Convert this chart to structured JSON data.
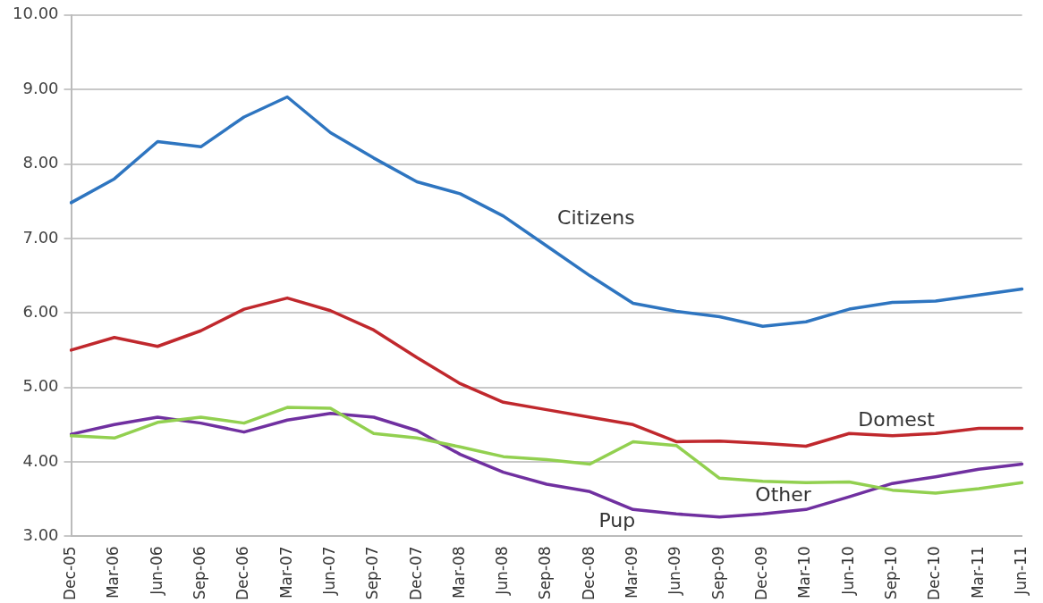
{
  "chart_data": {
    "type": "line",
    "categories": [
      "Dec-05",
      "Mar-06",
      "Jun-06",
      "Sep-06",
      "Dec-06",
      "Mar-07",
      "Jun-07",
      "Sep-07",
      "Dec-07",
      "Mar-08",
      "Jun-08",
      "Sep-08",
      "Dec-08",
      "Mar-09",
      "Jun-09",
      "Sep-09",
      "Dec-09",
      "Mar-10",
      "Jun-10",
      "Sep-10",
      "Dec-10",
      "Mar-11",
      "Jun-11"
    ],
    "series": [
      {
        "name": "Citizens",
        "color": "#2e75c0",
        "values": [
          7.48,
          7.8,
          8.3,
          8.23,
          8.63,
          8.9,
          8.42,
          8.08,
          7.76,
          7.6,
          7.3,
          6.9,
          6.5,
          6.13,
          6.02,
          5.95,
          5.82,
          5.88,
          6.05,
          6.14,
          6.16,
          6.24,
          6.32
        ]
      },
      {
        "name": "Domest",
        "color": "#c0282d",
        "values": [
          5.5,
          5.67,
          5.55,
          5.76,
          6.05,
          6.2,
          6.03,
          5.77,
          5.4,
          5.05,
          4.8,
          4.7,
          4.6,
          4.5,
          4.27,
          4.28,
          4.25,
          4.21,
          4.38,
          4.35,
          4.38,
          4.45,
          4.45
        ]
      },
      {
        "name": "Other",
        "color": "#92d050",
        "values": [
          4.35,
          4.32,
          4.53,
          4.6,
          4.52,
          4.73,
          4.72,
          4.38,
          4.32,
          4.2,
          4.07,
          4.03,
          3.97,
          4.27,
          4.22,
          3.78,
          3.74,
          3.72,
          3.73,
          3.62,
          3.58,
          3.64,
          3.72
        ]
      },
      {
        "name": "Pup",
        "color": "#7030a0",
        "values": [
          4.37,
          4.5,
          4.6,
          4.52,
          4.4,
          4.56,
          4.65,
          4.6,
          4.42,
          4.1,
          3.86,
          3.7,
          3.6,
          3.36,
          3.3,
          3.26,
          3.3,
          3.36,
          3.53,
          3.71,
          3.8,
          3.9,
          3.97
        ]
      }
    ],
    "ylim": [
      3,
      10
    ],
    "yticks": [
      {
        "value": 3,
        "label": "3.00"
      },
      {
        "value": 4,
        "label": "4.00"
      },
      {
        "value": 5,
        "label": "5.00"
      },
      {
        "value": 6,
        "label": "6.00"
      },
      {
        "value": 7,
        "label": "7.00"
      },
      {
        "value": 8,
        "label": "8.00"
      },
      {
        "value": 9,
        "label": "9.00"
      },
      {
        "value": 10,
        "label": "10.00"
      }
    ],
    "grid": "y",
    "legend": false,
    "marker": "none",
    "line_style": "solid"
  }
}
